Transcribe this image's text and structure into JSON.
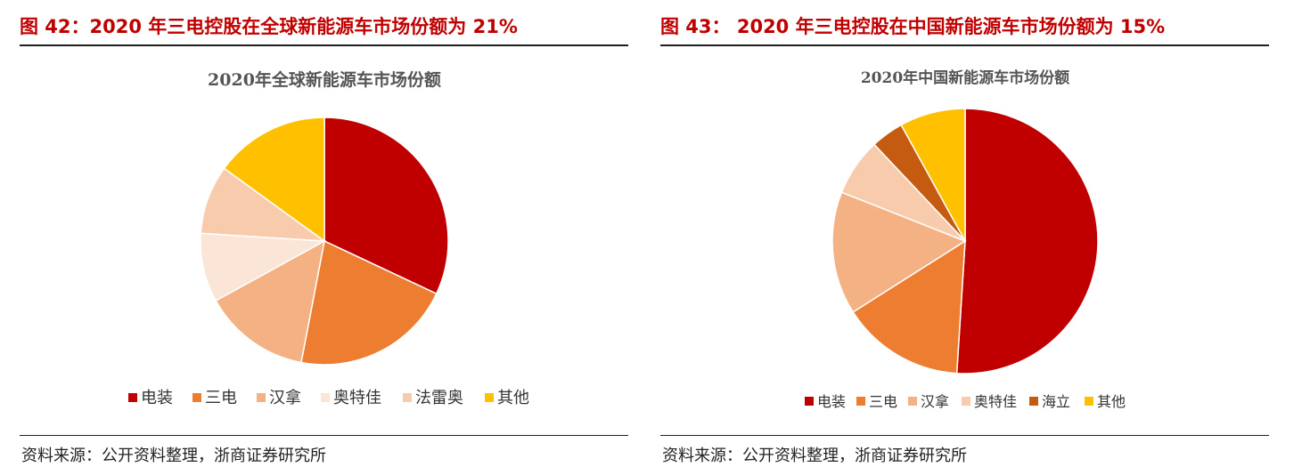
{
  "left": {
    "figure_title": "图 42：2020 年三电控股在全球新能源车市场份额为 21%",
    "source": "资料来源：公开资料整理，浙商证券研究所"
  },
  "right": {
    "figure_title": "图 43：  2020 年三电控股在中国新能源车市场份额为 15%",
    "source": "资料来源：公开资料整理，浙商证券研究所"
  },
  "chart_data": [
    {
      "type": "pie",
      "title": "2020年全球新能源车市场份额",
      "categories": [
        "电装",
        "三电",
        "汉拿",
        "奥特佳",
        "法雷奥",
        "其他"
      ],
      "values": [
        32,
        21,
        14,
        9,
        9,
        15
      ],
      "unit": "%",
      "colors": [
        "#c00000",
        "#ed7d31",
        "#f4b183",
        "#fbe5d6",
        "#f8cbad",
        "#ffc000"
      ],
      "legend": "bottom"
    },
    {
      "type": "pie",
      "title": "2020年中国新能源车市场份额",
      "categories": [
        "电装",
        "三电",
        "汉拿",
        "奥特佳",
        "海立",
        "其他"
      ],
      "values": [
        51,
        15,
        15,
        7,
        4,
        8
      ],
      "unit": "%",
      "colors": [
        "#c00000",
        "#ed7d31",
        "#f4b183",
        "#f8cbad",
        "#c55a11",
        "#ffc000"
      ],
      "legend": "bottom"
    }
  ]
}
